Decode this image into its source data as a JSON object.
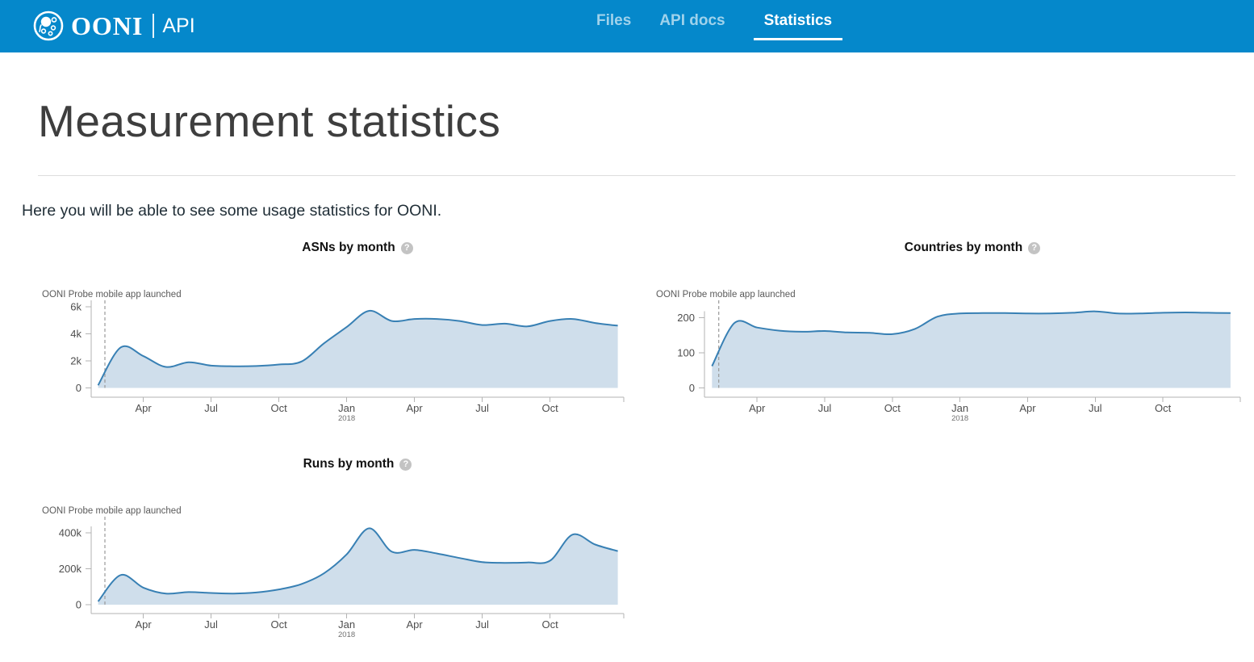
{
  "header": {
    "brand": "OONI",
    "product": "API",
    "nav": [
      {
        "label": "Files",
        "active": false
      },
      {
        "label": "API docs",
        "active": false
      },
      {
        "label": "Statistics",
        "active": true
      }
    ]
  },
  "page": {
    "title": "Measurement statistics",
    "intro": "Here you will be able to see some usage statistics for OONI."
  },
  "colors": {
    "header_bg": "#0588CB",
    "nav_active": "#ffffff",
    "chart_line": "#3880b4",
    "chart_fill": "#cfdeeb",
    "axis_line": "#b3b3b3",
    "tick_label": "#4d4d4d",
    "annotation_text": "#5a5a5a",
    "launch_line": "#999999",
    "help_icon_bg": "#c3c3c3"
  },
  "icons": {
    "logo": "ooni-octopus-icon",
    "help": "question-circle-icon"
  },
  "chart_data": [
    {
      "id": "asns",
      "type": "area",
      "title": "ASNs by month",
      "annotation": "OONI Probe mobile app launched",
      "legend": "none",
      "grid": false,
      "months": [
        "2017-02",
        "2017-03",
        "2017-04",
        "2017-05",
        "2017-06",
        "2017-07",
        "2017-08",
        "2017-09",
        "2017-10",
        "2017-11",
        "2017-12",
        "2018-01",
        "2018-02",
        "2018-03",
        "2018-04",
        "2018-05",
        "2018-06",
        "2018-07",
        "2018-08",
        "2018-09",
        "2018-10",
        "2018-11",
        "2018-12",
        "2019-01"
      ],
      "values": [
        200,
        3000,
        2350,
        1550,
        1900,
        1650,
        1600,
        1620,
        1730,
        1950,
        3300,
        4500,
        5700,
        4950,
        5100,
        5100,
        4950,
        4650,
        4750,
        4550,
        4950,
        5100,
        4800,
        4600
      ],
      "ylim": [
        0,
        6500
      ],
      "yticks": [
        {
          "v": 0,
          "label": "0"
        },
        {
          "v": 2000,
          "label": "2k"
        },
        {
          "v": 4000,
          "label": "4k"
        },
        {
          "v": 6000,
          "label": "6k"
        }
      ],
      "xticks": [
        {
          "i": 2,
          "label": "Apr"
        },
        {
          "i": 5,
          "label": "Jul"
        },
        {
          "i": 8,
          "label": "Oct"
        },
        {
          "i": 11,
          "label": "Jan",
          "sublabel": "2018"
        },
        {
          "i": 14,
          "label": "Apr"
        },
        {
          "i": 17,
          "label": "Jul"
        },
        {
          "i": 20,
          "label": "Oct"
        }
      ]
    },
    {
      "id": "countries",
      "type": "area",
      "title": "Countries by month",
      "annotation": "OONI Probe mobile app launched",
      "legend": "none",
      "grid": false,
      "months": [
        "2017-02",
        "2017-03",
        "2017-04",
        "2017-05",
        "2017-06",
        "2017-07",
        "2017-08",
        "2017-09",
        "2017-10",
        "2017-11",
        "2017-12",
        "2018-01",
        "2018-02",
        "2018-03",
        "2018-04",
        "2018-05",
        "2018-06",
        "2018-07",
        "2018-08",
        "2018-09",
        "2018-10",
        "2018-11",
        "2018-12",
        "2019-01"
      ],
      "values": [
        62,
        185,
        172,
        163,
        160,
        162,
        158,
        157,
        153,
        168,
        203,
        212,
        213,
        213,
        212,
        212,
        214,
        218,
        212,
        212,
        214,
        215,
        214,
        213
      ],
      "ylim": [
        0,
        240
      ],
      "yticks": [
        {
          "v": 0,
          "label": "0"
        },
        {
          "v": 100,
          "label": "100"
        },
        {
          "v": 200,
          "label": "200"
        }
      ],
      "xticks": [
        {
          "i": 2,
          "label": "Apr"
        },
        {
          "i": 5,
          "label": "Jul"
        },
        {
          "i": 8,
          "label": "Oct"
        },
        {
          "i": 11,
          "label": "Jan",
          "sublabel": "2018"
        },
        {
          "i": 14,
          "label": "Apr"
        },
        {
          "i": 17,
          "label": "Jul"
        },
        {
          "i": 20,
          "label": "Oct"
        }
      ]
    },
    {
      "id": "runs",
      "type": "area",
      "title": "Runs by month",
      "annotation": "OONI Probe mobile app launched",
      "legend": "none",
      "grid": false,
      "months": [
        "2017-02",
        "2017-03",
        "2017-04",
        "2017-05",
        "2017-06",
        "2017-07",
        "2017-08",
        "2017-09",
        "2017-10",
        "2017-11",
        "2017-12",
        "2018-01",
        "2018-02",
        "2018-03",
        "2018-04",
        "2018-05",
        "2018-06",
        "2018-07",
        "2018-08",
        "2018-09",
        "2018-10",
        "2018-11",
        "2018-12",
        "2019-01"
      ],
      "values": [
        18000,
        165000,
        95000,
        62000,
        70000,
        65000,
        62000,
        68000,
        85000,
        115000,
        175000,
        280000,
        425000,
        295000,
        305000,
        285000,
        260000,
        237000,
        233000,
        235000,
        245000,
        390000,
        335000,
        298000
      ],
      "ylim": [
        0,
        480000
      ],
      "yticks": [
        {
          "v": 0,
          "label": "0"
        },
        {
          "v": 200000,
          "label": "200k"
        },
        {
          "v": 400000,
          "label": "400k"
        }
      ],
      "xticks": [
        {
          "i": 2,
          "label": "Apr"
        },
        {
          "i": 5,
          "label": "Jul"
        },
        {
          "i": 8,
          "label": "Oct"
        },
        {
          "i": 11,
          "label": "Jan",
          "sublabel": "2018"
        },
        {
          "i": 14,
          "label": "Apr"
        },
        {
          "i": 17,
          "label": "Jul"
        },
        {
          "i": 20,
          "label": "Oct"
        }
      ]
    }
  ]
}
